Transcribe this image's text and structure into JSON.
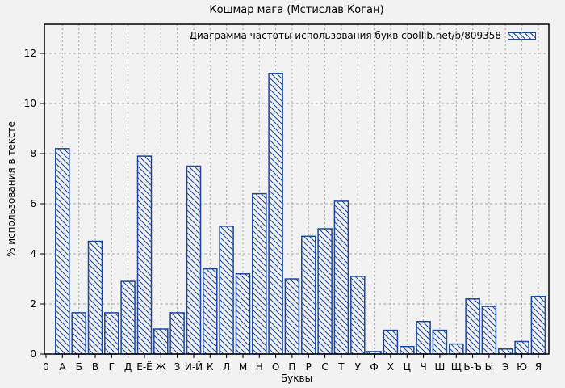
{
  "chart_data": {
    "type": "bar",
    "title": "Кошмар мага (Мстислав Коган)",
    "legend": "Диаграмма частоты использования букв coollib.net/b/809358",
    "legend_position": "top-right-inside",
    "xlabel": "Буквы",
    "ylabel": "% использования в тексте",
    "origin_label": "0",
    "categories": [
      "А",
      "Б",
      "В",
      "Г",
      "Д",
      "Е-Ё",
      "Ж",
      "З",
      "И-Й",
      "К",
      "Л",
      "М",
      "Н",
      "О",
      "П",
      "Р",
      "С",
      "Т",
      "У",
      "Ф",
      "Х",
      "Ц",
      "Ч",
      "Ш",
      "Щ",
      "Ь-Ъ",
      "Ы",
      "Э",
      "Ю",
      "Я"
    ],
    "values": [
      8.2,
      1.65,
      4.5,
      1.65,
      2.9,
      7.9,
      1.0,
      1.65,
      7.5,
      3.4,
      5.1,
      3.2,
      6.4,
      11.2,
      3.0,
      4.7,
      5.0,
      6.1,
      3.1,
      0.1,
      0.95,
      0.3,
      1.3,
      0.95,
      0.4,
      2.2,
      1.9,
      0.2,
      0.5,
      2.3
    ],
    "yticks": [
      0,
      2,
      4,
      6,
      8,
      10,
      12
    ],
    "ylim": [
      0,
      13.2
    ],
    "grid": true,
    "hatch": "diagonal-backslash",
    "colors": {
      "bar": "#1a46a0",
      "grid": "#a8a8a8",
      "axis": "#000000",
      "background": "#f2f2f2",
      "text": "#000000"
    }
  }
}
